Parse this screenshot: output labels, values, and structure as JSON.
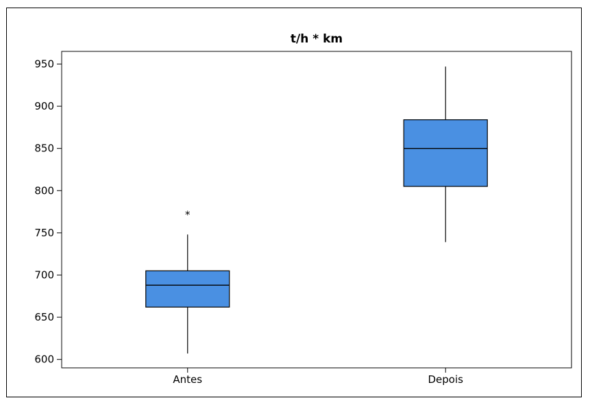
{
  "chart_data": {
    "type": "boxplot",
    "title": "t/h * km",
    "xlabel": "",
    "ylabel": "",
    "ylim": [
      590,
      965
    ],
    "yticks": [
      600,
      650,
      700,
      750,
      800,
      850,
      900,
      950
    ],
    "categories": [
      "Antes",
      "Depois"
    ],
    "boxes": [
      {
        "category": "Antes",
        "min": 607,
        "q1": 662,
        "median": 688,
        "q3": 705,
        "max": 748,
        "outliers": [
          774
        ]
      },
      {
        "category": "Depois",
        "min": 739,
        "q1": 805,
        "median": 850,
        "q3": 884,
        "max": 947,
        "outliers": []
      }
    ],
    "box_color": "#4a90e2",
    "grid": false
  }
}
